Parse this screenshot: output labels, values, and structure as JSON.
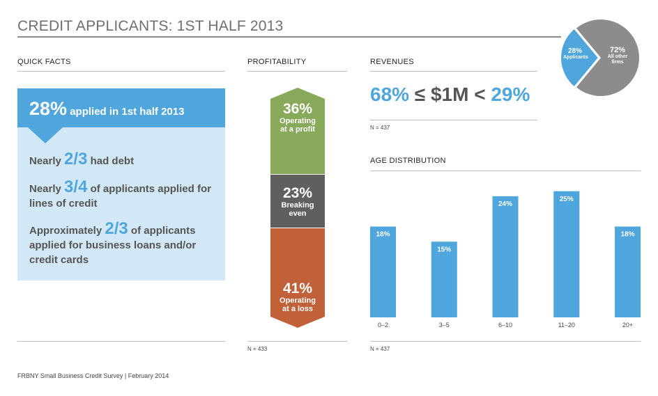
{
  "title": "CREDIT APPLICANTS: 1ST HALF 2013",
  "footer": "FRBNY Small Business Credit Survey  |  February 2014",
  "quick_facts": {
    "heading": "QUICK FACTS",
    "headline_big": "28%",
    "headline_text": " applied in 1st half 2013",
    "facts": [
      {
        "pre": "Nearly ",
        "big": "2/3",
        "post": " had debt"
      },
      {
        "pre": "Nearly ",
        "big": "3/4",
        "post": " of applicants applied for lines of credit"
      },
      {
        "pre": "Approximately ",
        "big": "2/3",
        "post": " of applicants applied for business loans and/or credit cards"
      }
    ]
  },
  "profitability": {
    "heading": "PROFITABILITY",
    "note": "N = 433",
    "segments": [
      {
        "value": "36%",
        "line1": "Operating",
        "line2": "at a profit",
        "color": "#88a85a"
      },
      {
        "value": "23%",
        "line1": "Breaking",
        "line2": "even",
        "color": "#5f5f5f"
      },
      {
        "value": "41%",
        "line1": "Operating",
        "line2": "at a loss",
        "color": "#c0613a"
      }
    ]
  },
  "revenues": {
    "heading": "REVENUES",
    "left_pct": "68%",
    "middle": " ≤ $1M < ",
    "right_pct": "29%",
    "note": "N = 437"
  },
  "applicant_share": {
    "applicants_pct": "28%",
    "applicants_label": "Applicants",
    "other_pct": "72%",
    "other_label_1": "All other",
    "other_label_2": "firms",
    "colors": {
      "applicants": "#4ea6dc",
      "other": "#8c8c8c"
    }
  },
  "age_distribution": {
    "heading": "AGE DISTRIBUTION",
    "note": "N = 437"
  },
  "chart_data": [
    {
      "type": "bar",
      "title": "AGE DISTRIBUTION",
      "categories": [
        "0–2",
        "3–5",
        "6–10",
        "11–20",
        "20+"
      ],
      "values": [
        18,
        15,
        24,
        25,
        18
      ],
      "value_labels": [
        "18%",
        "15%",
        "24%",
        "25%",
        "18%"
      ],
      "ylim": [
        0,
        28
      ],
      "grid": false,
      "color": "#4ea6dc"
    },
    {
      "type": "pie",
      "labels": [
        "Applicants",
        "All other firms"
      ],
      "values": [
        28,
        72
      ]
    }
  ]
}
